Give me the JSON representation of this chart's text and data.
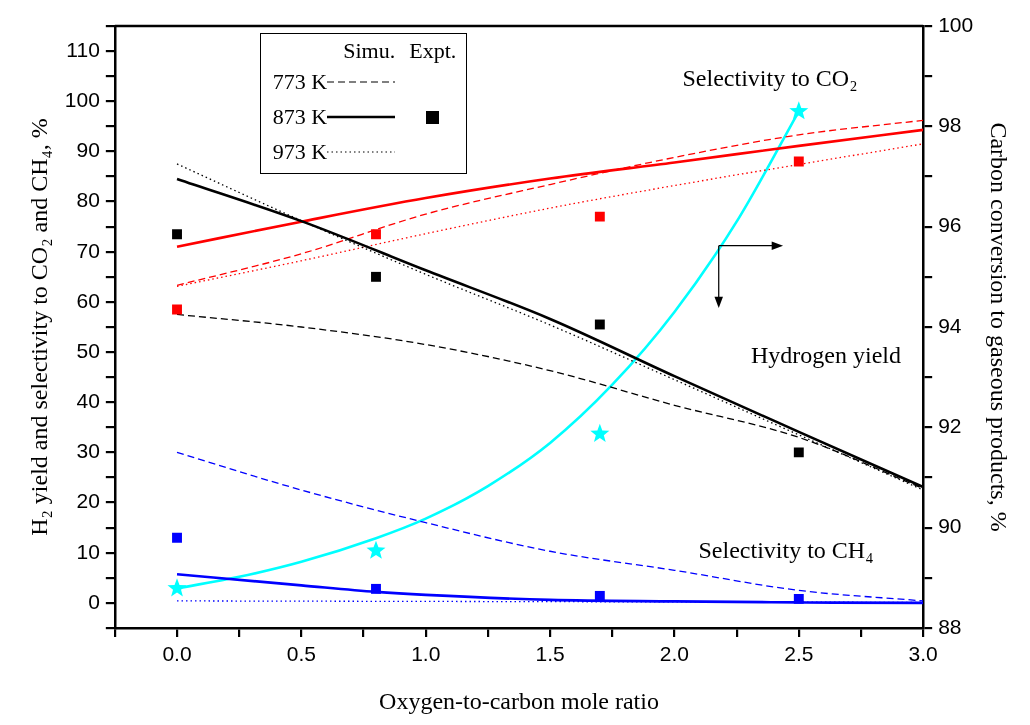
{
  "chart_data": {
    "type": "line",
    "xlabel": "Oxygen-to-carbon mole ratio",
    "ylabel": "H₂ yield and selectivity to CO₂ and CH₄, %",
    "y2label": "Carbon conversion to gaseous products, %",
    "legend_title": "Simu.",
    "legend": "top left",
    "xlim": [
      -0.25,
      3.0
    ],
    "xticks": [
      {
        "value": -0.25,
        "label": null
      },
      {
        "value": 0,
        "label": "0.0"
      },
      {
        "value": 0.25,
        "label": null
      },
      {
        "value": 0.5,
        "label": "0.5"
      },
      {
        "value": 0.75,
        "label": null
      },
      {
        "value": 1,
        "label": "1.0"
      },
      {
        "value": 1.25,
        "label": null
      },
      {
        "value": 1.5,
        "label": "1.5"
      },
      {
        "value": 1.75,
        "label": null
      },
      {
        "value": 2,
        "label": "2.0"
      },
      {
        "value": 2.25,
        "label": null
      },
      {
        "value": 2.5,
        "label": "2.5"
      },
      {
        "value": 2.75,
        "label": null
      },
      {
        "value": 3,
        "label": "3.0"
      }
    ],
    "ylim": [
      -5,
      115
    ],
    "yticks": [
      {
        "value": -5,
        "label": null
      },
      0,
      {
        "value": 5,
        "label": null
      },
      10,
      {
        "value": 15,
        "label": null
      },
      20,
      {
        "value": 25,
        "label": null
      },
      30,
      {
        "value": 35,
        "label": null
      },
      40,
      {
        "value": 45,
        "label": null
      },
      50,
      {
        "value": 55,
        "label": null
      },
      60,
      {
        "value": 65,
        "label": null
      },
      70,
      {
        "value": 75,
        "label": null
      },
      80,
      {
        "value": 85,
        "label": null
      },
      90,
      {
        "value": 95,
        "label": null
      },
      100,
      {
        "value": 105,
        "label": null
      },
      110,
      {
        "value": 115,
        "label": null
      }
    ],
    "y2lim": [
      88,
      100
    ],
    "y2ticks": [
      88,
      {
        "value": 89,
        "label": null
      },
      90,
      {
        "value": 91,
        "label": null
      },
      92,
      {
        "value": 93,
        "label": null
      },
      94,
      {
        "value": 95,
        "label": null
      },
      96,
      {
        "value": 97,
        "label": null
      },
      98,
      {
        "value": 99,
        "label": null
      },
      100
    ],
    "annotations": [
      "Expt.",
      "Selectivity to CO₂",
      "Hydrogen yield",
      "Selectivity to CH₄"
    ],
    "series": [
      {
        "name": "773 K",
        "type": "line",
        "line_style": "dashed",
        "color": "#000000",
        "x": [
          0,
          0.5,
          1,
          1.5,
          2,
          2.5,
          3
        ],
        "values": [
          57.5,
          55,
          51.5,
          46.3,
          39.4,
          33,
          22.8
        ]
      },
      {
        "name": "873 K",
        "type": "line",
        "line_style": "solid",
        "color": "#000000",
        "x": [
          0,
          0.5,
          1,
          1.5,
          2,
          2.5,
          3
        ],
        "values": [
          84.5,
          76.1,
          66.3,
          56.6,
          45.2,
          34.1,
          23.1
        ]
      },
      {
        "name": "973 K",
        "type": "line",
        "line_style": "dotted",
        "color": "#000000",
        "x": [
          0,
          0.5,
          1,
          1.5,
          2,
          2.5,
          3
        ],
        "values": [
          87.5,
          76.2,
          65.5,
          55.4,
          44.5,
          33.5,
          22.5
        ]
      },
      {
        "type": "line",
        "line_style": "dashed",
        "color": "#ff0000",
        "x": [
          0,
          0.5,
          1,
          1.5,
          2,
          2.5,
          3
        ],
        "values": [
          63.3,
          69.6,
          77.5,
          83.4,
          88.8,
          93.3,
          96.2
        ]
      },
      {
        "type": "line",
        "line_style": "solid",
        "color": "#ff0000",
        "x": [
          0,
          0.5,
          1,
          1.5,
          2,
          2.5,
          3
        ],
        "values": [
          71,
          76,
          80.7,
          84.6,
          87.8,
          91.1,
          94.3
        ]
      },
      {
        "type": "line",
        "line_style": "dotted",
        "color": "#ff0000",
        "x": [
          0,
          0.5,
          1,
          1.5,
          2,
          2.5,
          3
        ],
        "values": [
          63.1,
          68.2,
          73.6,
          78.7,
          83.2,
          87.4,
          91.5
        ]
      },
      {
        "type": "line",
        "line_style": "dashed",
        "color": "#0000ff",
        "x": [
          0,
          0.5,
          1,
          1.5,
          2,
          2.5,
          3
        ],
        "values": [
          30,
          22.5,
          16,
          10.3,
          6.5,
          2.5,
          0.4
        ]
      },
      {
        "type": "line",
        "line_style": "solid",
        "color": "#0000ff",
        "x": [
          0,
          0.5,
          0.8,
          1,
          1.5,
          2,
          2.5,
          3
        ],
        "values": [
          5.7,
          3.5,
          2.2,
          1.6,
          0.6,
          0.3,
          0.1,
          0
        ]
      },
      {
        "type": "line",
        "line_style": "dotted",
        "color": "#0000ff",
        "x": [
          0,
          1,
          2,
          3
        ],
        "values": [
          0.4,
          0.3,
          0.2,
          0.1
        ]
      },
      {
        "type": "scatter",
        "marker": "square",
        "color": "#000000",
        "x": [
          0,
          0.8,
          1.7,
          2.5
        ],
        "values": [
          73.5,
          65,
          55.5,
          30
        ]
      },
      {
        "type": "scatter",
        "marker": "square",
        "color": "#ff0000",
        "x": [
          0,
          0.8,
          1.7,
          2.5
        ],
        "values": [
          58.5,
          73.5,
          77,
          88
        ]
      },
      {
        "type": "scatter",
        "marker": "square",
        "color": "#0000ff",
        "x": [
          0,
          0.8,
          1.7,
          2.5
        ],
        "values": [
          13,
          2.8,
          1.4,
          0.8
        ]
      },
      {
        "type": "line",
        "line_style": "solid",
        "axis": "y2",
        "color": "#00ffff",
        "x": [
          0,
          0.25,
          0.5,
          0.8,
          1,
          1.25,
          1.5,
          1.75,
          2,
          2.25,
          2.5
        ],
        "values": [
          88.79,
          89.02,
          89.32,
          89.79,
          90.18,
          90.83,
          91.69,
          92.85,
          94.3,
          96.1,
          98.3
        ]
      },
      {
        "type": "scatter",
        "marker": "star",
        "axis": "y2",
        "color": "#00ffff",
        "x": [
          0,
          0.8,
          1.7,
          2.5
        ],
        "values": [
          88.79,
          89.54,
          91.87,
          98.3
        ]
      }
    ]
  }
}
